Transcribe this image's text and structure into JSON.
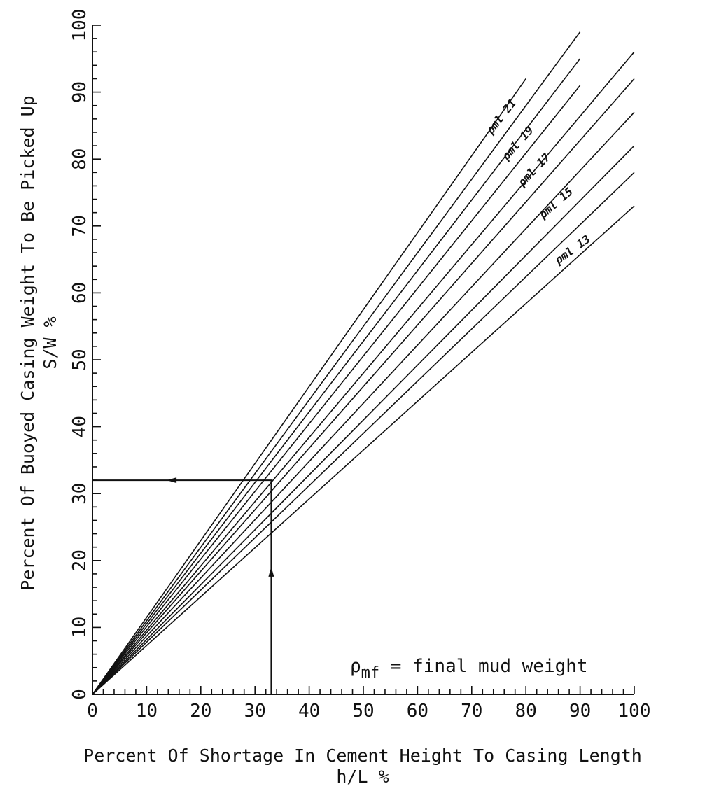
{
  "chart_data": {
    "type": "line",
    "xlabel_line1": "Percent Of Shortage In Cement Height To Casing Length",
    "xlabel_line2": "h/L %",
    "ylabel_line1": "Percent Of Buoyed Casing Weight To Be Picked Up",
    "ylabel_line2": "S/W %",
    "xlim": [
      0,
      100
    ],
    "ylim": [
      0,
      100
    ],
    "x_ticks": [
      "0",
      "10",
      "20",
      "30",
      "40",
      "50",
      "60",
      "70",
      "80",
      "90",
      "100"
    ],
    "y_ticks": [
      "0",
      "10",
      "20",
      "30",
      "40",
      "50",
      "60",
      "70",
      "80",
      "90",
      "100"
    ],
    "x_tick_values": [
      0,
      10,
      20,
      30,
      40,
      50,
      60,
      70,
      80,
      90,
      100
    ],
    "y_tick_values": [
      0,
      10,
      20,
      30,
      40,
      50,
      60,
      70,
      80,
      90,
      100
    ],
    "grid": false,
    "series": [
      {
        "name": "",
        "x": [
          0,
          80
        ],
        "y": [
          0,
          92
        ]
      },
      {
        "name": "",
        "x": [
          0,
          90
        ],
        "y": [
          0,
          99
        ]
      },
      {
        "name": "",
        "x": [
          0,
          90
        ],
        "y": [
          0,
          95
        ]
      },
      {
        "name": "",
        "x": [
          0,
          90
        ],
        "y": [
          0,
          91
        ]
      },
      {
        "name": "",
        "x": [
          0,
          100
        ],
        "y": [
          0,
          96
        ]
      },
      {
        "name": "",
        "x": [
          0,
          100
        ],
        "y": [
          0,
          92
        ]
      },
      {
        "name": "",
        "x": [
          0,
          100
        ],
        "y": [
          0,
          87
        ]
      },
      {
        "name": "",
        "x": [
          0,
          100
        ],
        "y": [
          0,
          82
        ]
      },
      {
        "name": "",
        "x": [
          0,
          100
        ],
        "y": [
          0,
          78
        ]
      },
      {
        "name": "",
        "x": [
          0,
          100
        ],
        "y": [
          0,
          73
        ]
      }
    ],
    "series_labels": [
      {
        "text": "ρml 21",
        "x": 76,
        "y": 86,
        "angle": -52
      },
      {
        "text": "ρml 19",
        "x": 79,
        "y": 82,
        "angle": -48
      },
      {
        "text": "ρml 17",
        "x": 82,
        "y": 78,
        "angle": -46
      },
      {
        "text": "ρml 15",
        "x": 86,
        "y": 73,
        "angle": -41
      },
      {
        "text": "ρml 13",
        "x": 89,
        "y": 66,
        "angle": -36
      }
    ],
    "example": {
      "x": 33,
      "y": 32,
      "arrow_up_at_y": 18,
      "arrow_left_at_x": 15
    },
    "annotation": {
      "symbol": "ρ",
      "subscript": "mf",
      "text": " = final mud weight"
    }
  }
}
